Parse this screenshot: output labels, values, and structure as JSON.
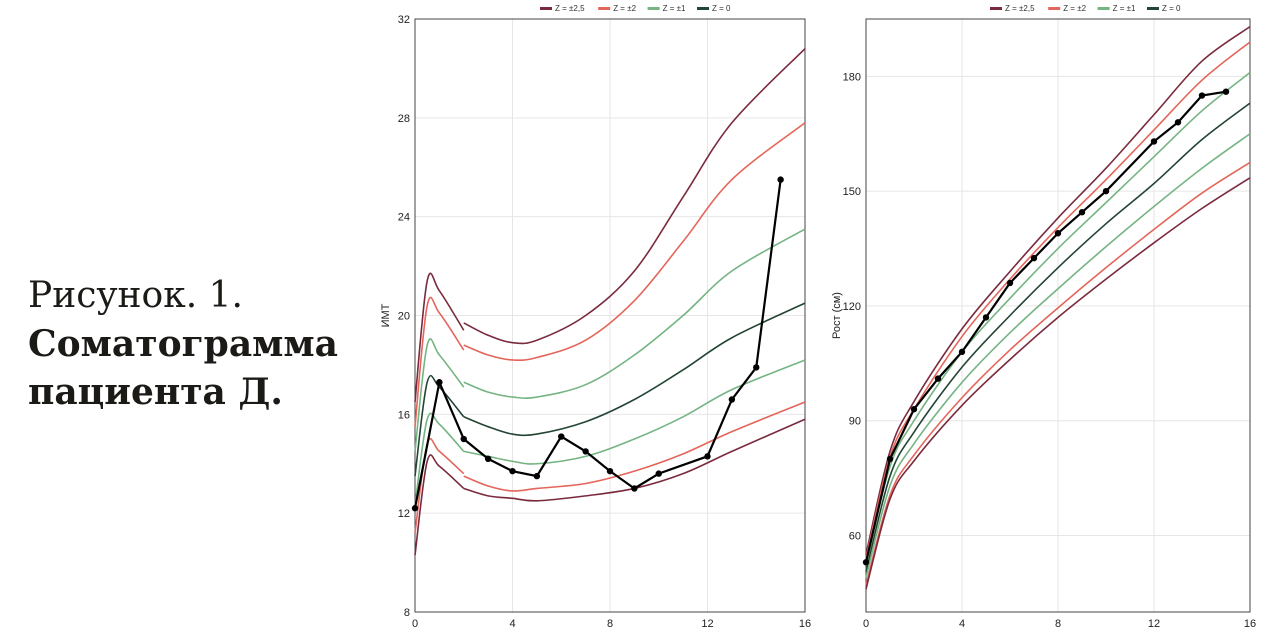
{
  "caption": {
    "line1": "Рисунок. 1.",
    "line2": "Соматограмма",
    "line3": "пациента Д."
  },
  "legend_labels": [
    "Z = ±2,5",
    "Z = ±2",
    "Z = ±1",
    "Z = 0"
  ],
  "legend_colors": [
    "#7a2a3c",
    "#e4655a",
    "#75b483",
    "#234533"
  ],
  "chart_data": [
    {
      "type": "line",
      "ylabel": "ИМТ",
      "xlim": [
        0,
        16
      ],
      "ylim": [
        8,
        32
      ],
      "xticks": [
        0,
        4,
        8,
        12,
        16
      ],
      "yticks": [
        8,
        12,
        16,
        20,
        24,
        28,
        32
      ],
      "grid": true,
      "legend": "top",
      "reference_curves": [
        {
          "z": "+2.5",
          "color": "#7a2a3c",
          "points": [
            [
              0,
              16.5
            ],
            [
              0.5,
              21.4
            ],
            [
              1,
              21.0
            ],
            [
              2,
              19.4
            ],
            [
              2,
              19.7
            ],
            [
              3,
              19.2
            ],
            [
              4,
              18.9
            ],
            [
              5,
              19.0
            ],
            [
              7,
              20.0
            ],
            [
              9,
              21.8
            ],
            [
              11,
              24.8
            ],
            [
              13,
              27.8
            ],
            [
              16,
              30.8
            ]
          ]
        },
        {
          "z": "+2",
          "color": "#e4655a",
          "points": [
            [
              0,
              15.5
            ],
            [
              0.5,
              20.4
            ],
            [
              1,
              20.1
            ],
            [
              2,
              18.6
            ],
            [
              2,
              18.8
            ],
            [
              3,
              18.4
            ],
            [
              4,
              18.2
            ],
            [
              5,
              18.3
            ],
            [
              7,
              19.0
            ],
            [
              9,
              20.6
            ],
            [
              11,
              23.0
            ],
            [
              13,
              25.5
            ],
            [
              16,
              27.8
            ]
          ]
        },
        {
          "z": "+1",
          "color": "#75b483",
          "points": [
            [
              0,
              14.5
            ],
            [
              0.5,
              18.8
            ],
            [
              1,
              18.4
            ],
            [
              2,
              17.1
            ],
            [
              2,
              17.3
            ],
            [
              3,
              16.9
            ],
            [
              4,
              16.7
            ],
            [
              5,
              16.7
            ],
            [
              7,
              17.2
            ],
            [
              9,
              18.4
            ],
            [
              11,
              20.0
            ],
            [
              13,
              21.8
            ],
            [
              16,
              23.5
            ]
          ]
        },
        {
          "z": "0",
          "color": "#234533",
          "points": [
            [
              0,
              13.5
            ],
            [
              0.5,
              17.3
            ],
            [
              1,
              17.1
            ],
            [
              2,
              15.9
            ],
            [
              2,
              15.9
            ],
            [
              3,
              15.5
            ],
            [
              4,
              15.2
            ],
            [
              5,
              15.2
            ],
            [
              7,
              15.7
            ],
            [
              9,
              16.6
            ],
            [
              11,
              17.8
            ],
            [
              13,
              19.1
            ],
            [
              16,
              20.5
            ]
          ]
        },
        {
          "z": "-1",
          "color": "#75b483",
          "points": [
            [
              0,
              12.3
            ],
            [
              0.5,
              15.8
            ],
            [
              1,
              15.6
            ],
            [
              2,
              14.5
            ],
            [
              2,
              14.5
            ],
            [
              3,
              14.3
            ],
            [
              4,
              14.1
            ],
            [
              5,
              14.0
            ],
            [
              7,
              14.3
            ],
            [
              9,
              15.0
            ],
            [
              11,
              15.9
            ],
            [
              13,
              17.0
            ],
            [
              16,
              18.2
            ]
          ]
        },
        {
          "z": "-2",
          "color": "#e4655a",
          "points": [
            [
              0,
              11.2
            ],
            [
              0.5,
              14.8
            ],
            [
              1,
              14.5
            ],
            [
              2,
              13.6
            ],
            [
              2,
              13.5
            ],
            [
              3,
              13.1
            ],
            [
              4,
              12.9
            ],
            [
              5,
              13.0
            ],
            [
              7,
              13.2
            ],
            [
              9,
              13.7
            ],
            [
              11,
              14.4
            ],
            [
              13,
              15.3
            ],
            [
              16,
              16.5
            ]
          ]
        },
        {
          "z": "-2.5",
          "color": "#7a2a3c",
          "points": [
            [
              0,
              10.3
            ],
            [
              0.5,
              14.1
            ],
            [
              1,
              13.9
            ],
            [
              2,
              13.0
            ],
            [
              2,
              13.0
            ],
            [
              3,
              12.7
            ],
            [
              4,
              12.6
            ],
            [
              5,
              12.5
            ],
            [
              7,
              12.7
            ],
            [
              9,
              13.0
            ],
            [
              11,
              13.6
            ],
            [
              13,
              14.5
            ],
            [
              16,
              15.8
            ]
          ]
        }
      ],
      "patient": {
        "x": [
          0,
          1,
          2,
          3,
          4,
          5,
          6,
          7,
          8,
          9,
          10,
          12,
          13,
          14,
          15
        ],
        "y": [
          12.2,
          17.3,
          15.0,
          14.2,
          13.7,
          13.5,
          15.1,
          14.5,
          13.7,
          13.0,
          13.6,
          14.3,
          16.6,
          17.9,
          25.5
        ]
      }
    },
    {
      "type": "line",
      "ylabel": "Рост (см)",
      "xlim": [
        0,
        16
      ],
      "ylim": [
        40,
        195
      ],
      "xticks": [
        0,
        4,
        8,
        12,
        16
      ],
      "yticks": [
        60,
        90,
        120,
        150,
        180
      ],
      "grid": true,
      "legend": "top",
      "reference_curves": [
        {
          "z": "+2.5",
          "color": "#7a2a3c",
          "points": [
            [
              0,
              55
            ],
            [
              1,
              82
            ],
            [
              2,
              95
            ],
            [
              4,
              114
            ],
            [
              6,
              129
            ],
            [
              8,
              143
            ],
            [
              10,
              156
            ],
            [
              12,
              170
            ],
            [
              14,
              184
            ],
            [
              16,
              193
            ]
          ]
        },
        {
          "z": "+2",
          "color": "#e4655a",
          "points": [
            [
              0,
              54
            ],
            [
              1,
              80.5
            ],
            [
              2,
              93
            ],
            [
              4,
              112
            ],
            [
              6,
              127
            ],
            [
              8,
              140.5
            ],
            [
              10,
              153
            ],
            [
              12,
              166
            ],
            [
              14,
              179
            ],
            [
              16,
              189
            ]
          ]
        },
        {
          "z": "+1",
          "color": "#75b483",
          "points": [
            [
              0,
              52.5
            ],
            [
              1,
              78
            ],
            [
              2,
              90
            ],
            [
              4,
              108
            ],
            [
              6,
              122
            ],
            [
              8,
              135
            ],
            [
              10,
              147
            ],
            [
              12,
              159
            ],
            [
              14,
              171
            ],
            [
              16,
              181
            ]
          ]
        },
        {
          "z": "0",
          "color": "#234533",
          "points": [
            [
              0,
              50.5
            ],
            [
              1,
              75.5
            ],
            [
              2,
              87
            ],
            [
              4,
              104
            ],
            [
              6,
              117.5
            ],
            [
              8,
              130
            ],
            [
              10,
              141.5
            ],
            [
              12,
              152
            ],
            [
              14,
              163.5
            ],
            [
              16,
              173
            ]
          ]
        },
        {
          "z": "-1",
          "color": "#75b483",
          "points": [
            [
              0,
              49
            ],
            [
              1,
              73
            ],
            [
              2,
              84
            ],
            [
              4,
              100
            ],
            [
              6,
              113
            ],
            [
              8,
              124.5
            ],
            [
              10,
              135.5
            ],
            [
              12,
              146
            ],
            [
              14,
              156
            ],
            [
              16,
              165
            ]
          ]
        },
        {
          "z": "-2",
          "color": "#e4655a",
          "points": [
            [
              0,
              47
            ],
            [
              1,
              70.5
            ],
            [
              2,
              81
            ],
            [
              4,
              96
            ],
            [
              6,
              108.5
            ],
            [
              8,
              119.5
            ],
            [
              10,
              130
            ],
            [
              12,
              140
            ],
            [
              14,
              149.5
            ],
            [
              16,
              157.5
            ]
          ]
        },
        {
          "z": "-2.5",
          "color": "#7a2a3c",
          "points": [
            [
              0,
              46
            ],
            [
              1,
              69.5
            ],
            [
              2,
              79.5
            ],
            [
              4,
              94
            ],
            [
              6,
              106
            ],
            [
              8,
              117
            ],
            [
              10,
              127
            ],
            [
              12,
              136.5
            ],
            [
              14,
              145.5
            ],
            [
              16,
              153.5
            ]
          ]
        }
      ],
      "patient": {
        "x": [
          0,
          1,
          2,
          3,
          4,
          5,
          6,
          7,
          8,
          9,
          10,
          12,
          13,
          14,
          15
        ],
        "y": [
          53,
          80,
          93,
          101,
          108,
          117,
          126,
          132.5,
          139,
          144.5,
          150,
          163,
          168,
          175,
          176
        ]
      }
    }
  ]
}
